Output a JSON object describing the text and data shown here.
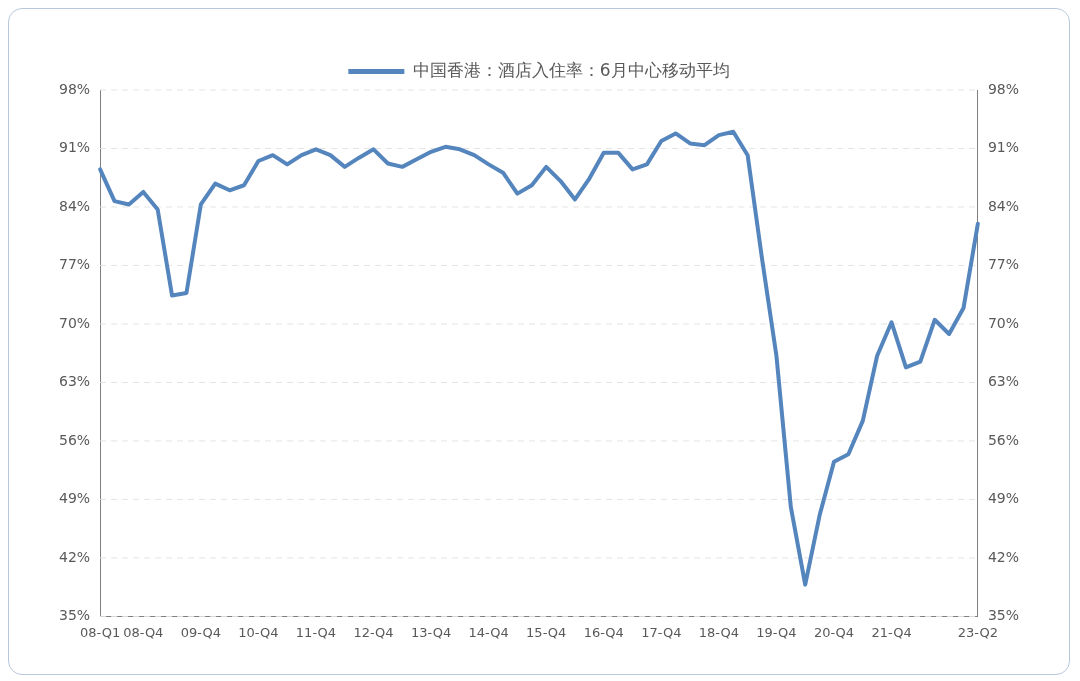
{
  "chart_data": {
    "type": "line",
    "categories": [
      "08-Q1",
      null,
      null,
      "08-Q4",
      null,
      null,
      null,
      "09-Q4",
      null,
      null,
      null,
      "10-Q4",
      null,
      null,
      null,
      "11-Q4",
      null,
      null,
      null,
      "12-Q4",
      null,
      null,
      null,
      "13-Q4",
      null,
      null,
      null,
      "14-Q4",
      null,
      null,
      null,
      "15-Q4",
      null,
      null,
      null,
      "16-Q4",
      null,
      null,
      null,
      "17-Q4",
      null,
      null,
      null,
      "18-Q4",
      null,
      null,
      null,
      "19-Q4",
      null,
      null,
      null,
      "20-Q4",
      null,
      null,
      null,
      "21-Q4",
      null,
      null,
      null,
      null,
      null,
      "23-Q2"
    ],
    "series": [
      {
        "name": "中国香港：酒店入住率：6月中心移动平均",
        "color": "#5585bd",
        "values": [
          88.5,
          84.7,
          84.3,
          85.8,
          83.7,
          73.4,
          73.7,
          84.3,
          86.8,
          86.0,
          86.6,
          89.5,
          90.2,
          89.1,
          90.2,
          90.9,
          90.2,
          88.8,
          89.9,
          90.9,
          89.2,
          88.8,
          89.7,
          90.6,
          91.2,
          90.9,
          90.2,
          89.1,
          88.1,
          85.6,
          86.6,
          88.8,
          87.1,
          84.9,
          87.4,
          90.5,
          90.5,
          88.5,
          89.1,
          91.9,
          92.8,
          91.6,
          91.4,
          92.6,
          93.0,
          90.2,
          77.8,
          66.2,
          48.1,
          38.8,
          47.1,
          53.5,
          54.4,
          58.4,
          66.2,
          70.2,
          64.8,
          65.5,
          70.5,
          68.8,
          71.9,
          82.0
        ]
      }
    ],
    "ylim": [
      35,
      98
    ],
    "yticks": [
      {
        "value": 35,
        "label": "35%"
      },
      {
        "value": 42,
        "label": "42%"
      },
      {
        "value": 49,
        "label": "49%"
      },
      {
        "value": 56,
        "label": "56%"
      },
      {
        "value": 63,
        "label": "63%"
      },
      {
        "value": 70,
        "label": "70%"
      },
      {
        "value": 77,
        "label": "77%"
      },
      {
        "value": 84,
        "label": "84%"
      },
      {
        "value": 91,
        "label": "91%"
      },
      {
        "value": 98,
        "label": "98%"
      }
    ],
    "y2lim": [
      35,
      98
    ],
    "y2ticks": [
      {
        "value": 35,
        "label": "35%"
      },
      {
        "value": 42,
        "label": "42%"
      },
      {
        "value": 49,
        "label": "49%"
      },
      {
        "value": 56,
        "label": "56%"
      },
      {
        "value": 63,
        "label": "63%"
      },
      {
        "value": 70,
        "label": "70%"
      },
      {
        "value": 77,
        "label": "77%"
      },
      {
        "value": 84,
        "label": "84%"
      },
      {
        "value": 91,
        "label": "91%"
      },
      {
        "value": 98,
        "label": "98%"
      }
    ],
    "grid": "y",
    "legend": "top",
    "marker": "none",
    "line_style": "solid"
  }
}
